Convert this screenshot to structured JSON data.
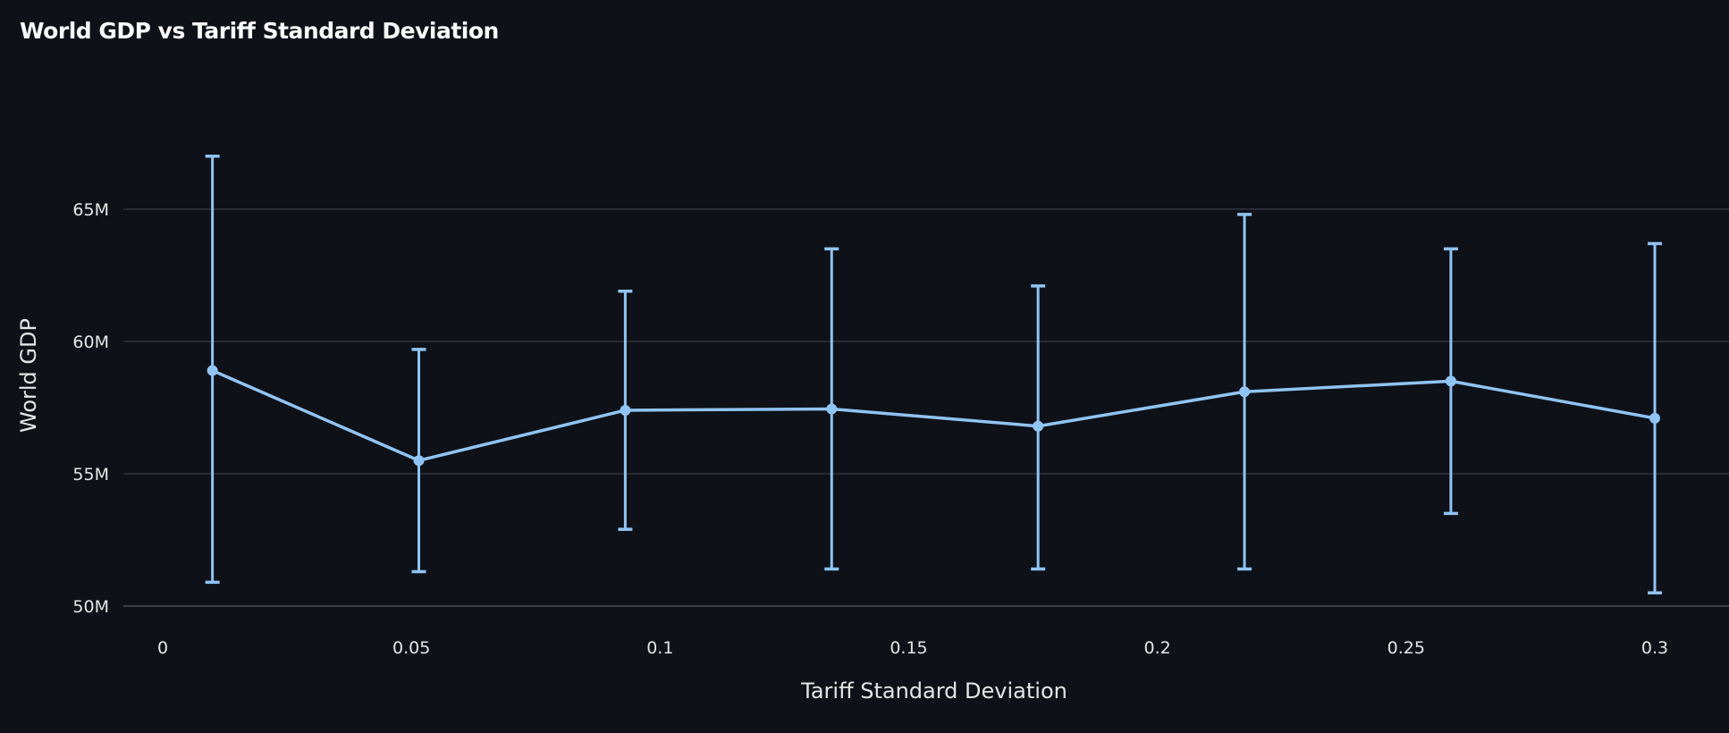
{
  "chart_data": {
    "type": "line",
    "title": "World GDP vs Tariff Standard Deviation",
    "xlabel": "Tariff Standard Deviation",
    "ylabel": "World GDP",
    "xlim": [
      -0.01,
      0.315
    ],
    "ylim": [
      50,
      67.5
    ],
    "x_ticks": [
      0,
      0.05,
      0.1,
      0.15,
      0.2,
      0.25,
      0.3
    ],
    "x_tick_labels": [
      "0",
      "0.05",
      "0.1",
      "0.15",
      "0.2",
      "0.25",
      "0.3"
    ],
    "y_ticks": [
      50,
      55,
      60,
      65
    ],
    "y_tick_labels": [
      "50M",
      "55M",
      "60M",
      "65M"
    ],
    "grid": "horizontal",
    "color": "#90c4f4",
    "series": [
      {
        "x": [
          0.01,
          0.0515,
          0.093,
          0.1345,
          0.176,
          0.2175,
          0.259,
          0.3
        ],
        "y": [
          58.9,
          55.5,
          57.4,
          57.45,
          56.8,
          58.1,
          58.5,
          57.1
        ],
        "y_low": [
          50.9,
          51.3,
          52.9,
          51.4,
          51.4,
          51.4,
          53.5,
          50.5
        ],
        "y_high": [
          67.0,
          59.7,
          61.9,
          63.5,
          62.1,
          64.8,
          63.5,
          63.7
        ]
      }
    ]
  }
}
